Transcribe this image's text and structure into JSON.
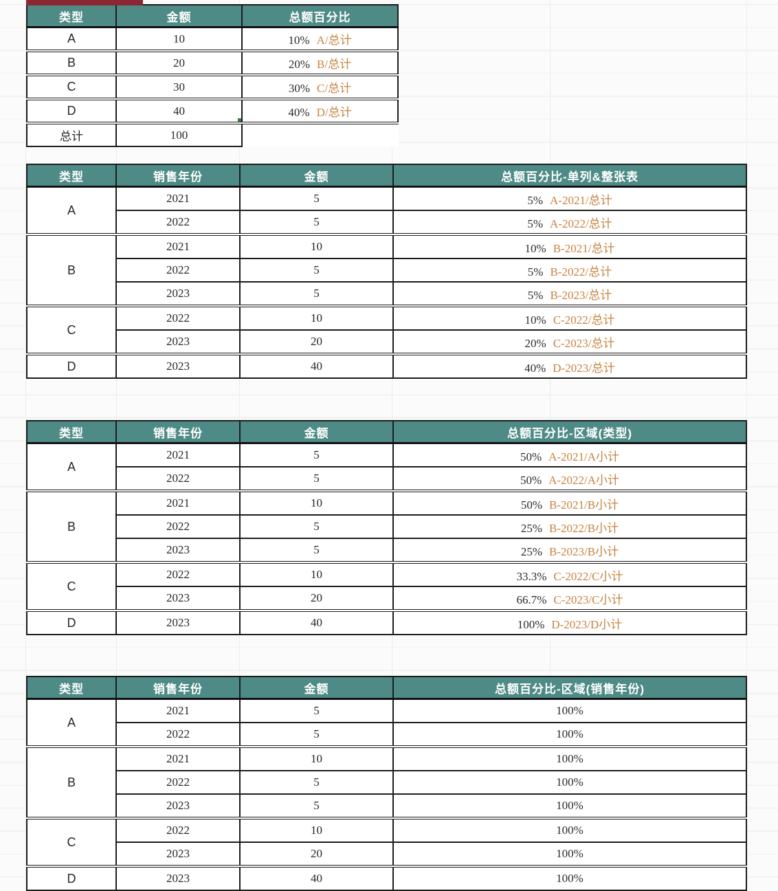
{
  "colors": {
    "header_bg": "#4e8b86",
    "header_text": "#ffffff",
    "formula_text": "#c6823f",
    "selection_green": "#3c7e41",
    "red_bar": "#8b2732",
    "grid_line": "#ececec",
    "table_border": "#1c1c1c"
  },
  "selection": {
    "table": "percent_of_total",
    "row_type": "D",
    "column": "金额",
    "has_fill_handle": true
  },
  "table_percent_of_total": {
    "headers": [
      "类型",
      "金额",
      "总额百分比"
    ],
    "rows": [
      {
        "type": "A",
        "amount": "10",
        "pct": "10%",
        "formula": "A/总计",
        "selected": false
      },
      {
        "type": "B",
        "amount": "20",
        "pct": "20%",
        "formula": "B/总计",
        "selected": false
      },
      {
        "type": "C",
        "amount": "30",
        "pct": "30%",
        "formula": "C/总计",
        "selected": false
      },
      {
        "type": "D",
        "amount": "40",
        "pct": "40%",
        "formula": "D/总计",
        "selected": true
      }
    ],
    "total": {
      "label": "总计",
      "value": "100"
    }
  },
  "table_percent_single_column": {
    "headers": [
      "类型",
      "销售年份",
      "金额",
      "总额百分比-单列&整张表"
    ],
    "groups": [
      {
        "type": "A",
        "rows": [
          {
            "year": "2021",
            "amount": "5",
            "pct": "5%",
            "formula": "A-2021/总计"
          },
          {
            "year": "2022",
            "amount": "5",
            "pct": "5%",
            "formula": "A-2022/总计"
          }
        ]
      },
      {
        "type": "B",
        "rows": [
          {
            "year": "2021",
            "amount": "10",
            "pct": "10%",
            "formula": "B-2021/总计"
          },
          {
            "year": "2022",
            "amount": "5",
            "pct": "5%",
            "formula": "B-2022/总计"
          },
          {
            "year": "2023",
            "amount": "5",
            "pct": "5%",
            "formula": "B-2023/总计"
          }
        ]
      },
      {
        "type": "C",
        "rows": [
          {
            "year": "2022",
            "amount": "10",
            "pct": "10%",
            "formula": "C-2022/总计"
          },
          {
            "year": "2023",
            "amount": "20",
            "pct": "20%",
            "formula": "C-2023/总计"
          }
        ]
      },
      {
        "type": "D",
        "rows": [
          {
            "year": "2023",
            "amount": "40",
            "pct": "40%",
            "formula": "D-2023/总计"
          }
        ]
      }
    ]
  },
  "table_percent_region_type": {
    "headers": [
      "类型",
      "销售年份",
      "金额",
      "总额百分比-区域(类型)"
    ],
    "groups": [
      {
        "type": "A",
        "rows": [
          {
            "year": "2021",
            "amount": "5",
            "pct": "50%",
            "formula": "A-2021/A小计"
          },
          {
            "year": "2022",
            "amount": "5",
            "pct": "50%",
            "formula": "A-2022/A小计"
          }
        ]
      },
      {
        "type": "B",
        "rows": [
          {
            "year": "2021",
            "amount": "10",
            "pct": "50%",
            "formula": "B-2021/B小计"
          },
          {
            "year": "2022",
            "amount": "5",
            "pct": "25%",
            "formula": "B-2022/B小计"
          },
          {
            "year": "2023",
            "amount": "5",
            "pct": "25%",
            "formula": "B-2023/B小计"
          }
        ]
      },
      {
        "type": "C",
        "rows": [
          {
            "year": "2022",
            "amount": "10",
            "pct": "33.3%",
            "formula": "C-2022/C小计"
          },
          {
            "year": "2023",
            "amount": "20",
            "pct": "66.7%",
            "formula": "C-2023/C小计"
          }
        ]
      },
      {
        "type": "D",
        "rows": [
          {
            "year": "2023",
            "amount": "40",
            "pct": "100%",
            "formula": "D-2023/D小计"
          }
        ]
      }
    ]
  },
  "table_percent_region_year": {
    "headers": [
      "类型",
      "销售年份",
      "金额",
      "总额百分比-区域(销售年份)"
    ],
    "groups": [
      {
        "type": "A",
        "rows": [
          {
            "year": "2021",
            "amount": "5",
            "pct": "100%",
            "formula": ""
          },
          {
            "year": "2022",
            "amount": "5",
            "pct": "100%",
            "formula": ""
          }
        ]
      },
      {
        "type": "B",
        "rows": [
          {
            "year": "2021",
            "amount": "10",
            "pct": "100%",
            "formula": ""
          },
          {
            "year": "2022",
            "amount": "5",
            "pct": "100%",
            "formula": ""
          },
          {
            "year": "2023",
            "amount": "5",
            "pct": "100%",
            "formula": ""
          }
        ]
      },
      {
        "type": "C",
        "rows": [
          {
            "year": "2022",
            "amount": "10",
            "pct": "100%",
            "formula": ""
          },
          {
            "year": "2023",
            "amount": "20",
            "pct": "100%",
            "formula": ""
          }
        ]
      },
      {
        "type": "D",
        "rows": [
          {
            "year": "2023",
            "amount": "40",
            "pct": "100%",
            "formula": ""
          }
        ]
      }
    ]
  }
}
